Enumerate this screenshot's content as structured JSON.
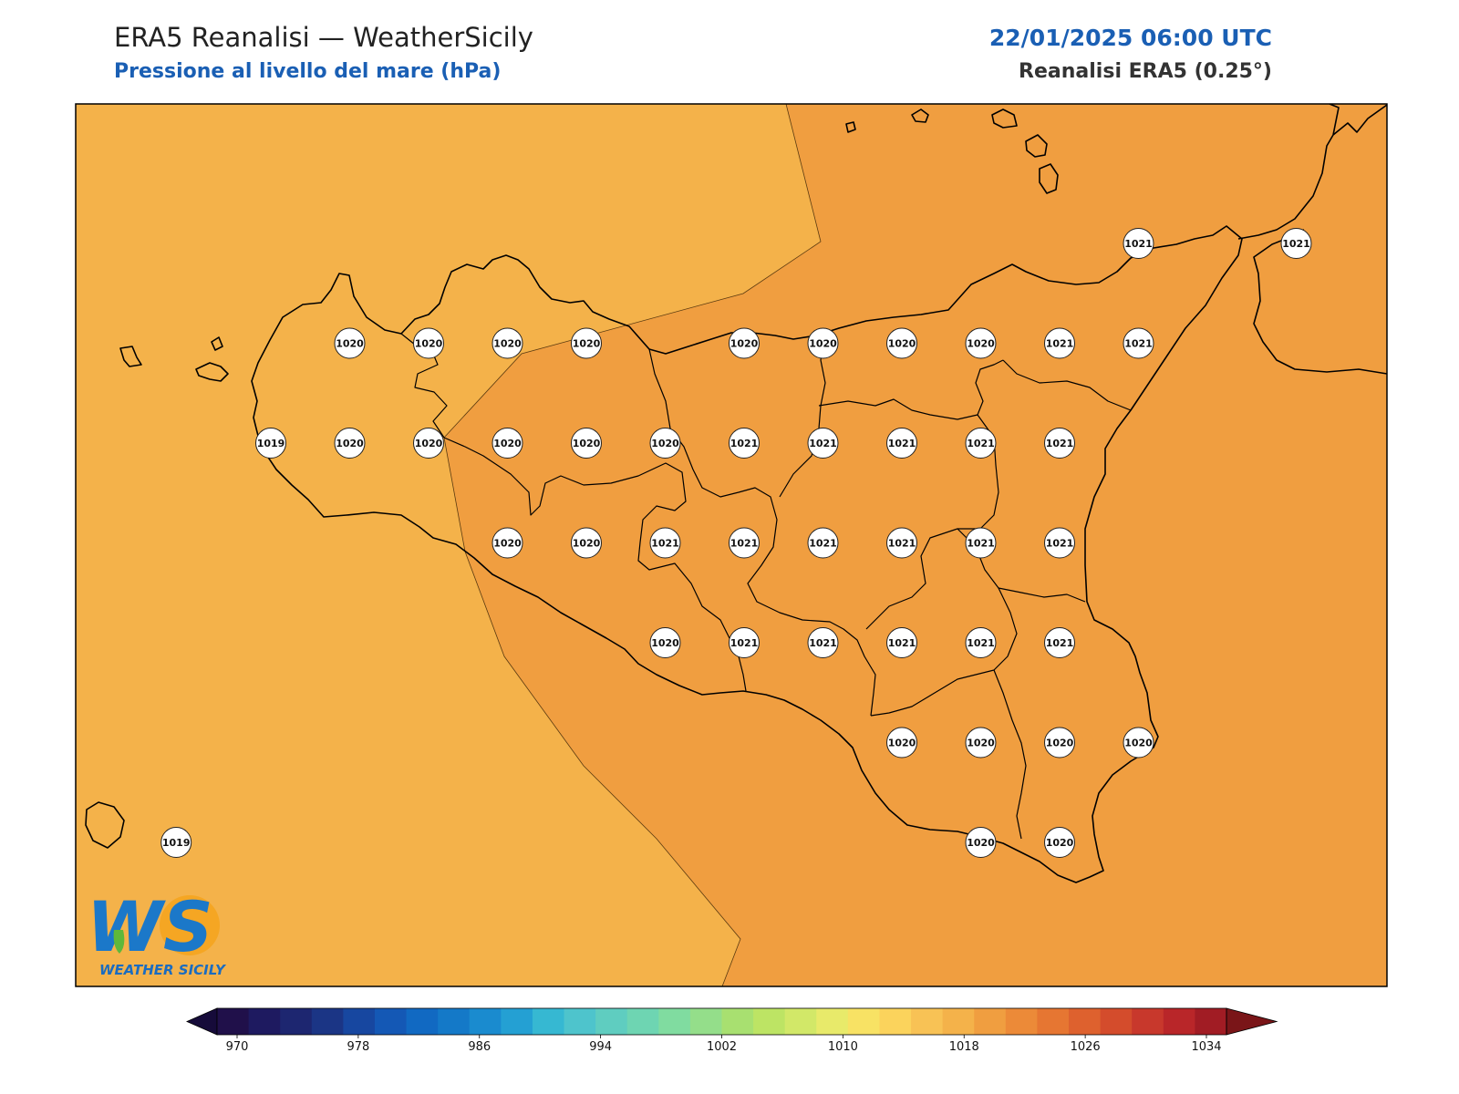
{
  "header": {
    "title": "ERA5 Reanalisi — WeatherSicily",
    "subtitle": "Pressione al livello del mare (hPa)",
    "datetime": "22/01/2025 06:00 UTC",
    "source": "Reanalisi ERA5 (0.25°)"
  },
  "logo": {
    "letters": "WS",
    "text": "WEATHER SICILY"
  },
  "colors": {
    "field_1019": "#f4b24a",
    "field_1020": "#f09e40",
    "coast": "#000000",
    "brand_blue": "#1a5fb4"
  },
  "stations": [
    {
      "value": "1021",
      "lon": 15.0,
      "lat": 38.25
    },
    {
      "value": "1021",
      "lon": 15.5,
      "lat": 38.25
    },
    {
      "value": "1020",
      "lon": 12.5,
      "lat": 38.0
    },
    {
      "value": "1020",
      "lon": 12.75,
      "lat": 38.0
    },
    {
      "value": "1020",
      "lon": 13.0,
      "lat": 38.0
    },
    {
      "value": "1020",
      "lon": 13.25,
      "lat": 38.0
    },
    {
      "value": "1020",
      "lon": 13.75,
      "lat": 38.0
    },
    {
      "value": "1020",
      "lon": 14.0,
      "lat": 38.0
    },
    {
      "value": "1020",
      "lon": 14.25,
      "lat": 38.0
    },
    {
      "value": "1020",
      "lon": 14.5,
      "lat": 38.0
    },
    {
      "value": "1021",
      "lon": 14.75,
      "lat": 38.0
    },
    {
      "value": "1021",
      "lon": 15.0,
      "lat": 38.0
    },
    {
      "value": "1019",
      "lon": 12.25,
      "lat": 37.75
    },
    {
      "value": "1020",
      "lon": 12.5,
      "lat": 37.75
    },
    {
      "value": "1020",
      "lon": 12.75,
      "lat": 37.75
    },
    {
      "value": "1020",
      "lon": 13.0,
      "lat": 37.75
    },
    {
      "value": "1020",
      "lon": 13.25,
      "lat": 37.75
    },
    {
      "value": "1020",
      "lon": 13.5,
      "lat": 37.75
    },
    {
      "value": "1021",
      "lon": 13.75,
      "lat": 37.75
    },
    {
      "value": "1021",
      "lon": 14.0,
      "lat": 37.75
    },
    {
      "value": "1021",
      "lon": 14.25,
      "lat": 37.75
    },
    {
      "value": "1021",
      "lon": 14.5,
      "lat": 37.75
    },
    {
      "value": "1021",
      "lon": 14.75,
      "lat": 37.75
    },
    {
      "value": "1020",
      "lon": 13.0,
      "lat": 37.5
    },
    {
      "value": "1020",
      "lon": 13.25,
      "lat": 37.5
    },
    {
      "value": "1021",
      "lon": 13.5,
      "lat": 37.5
    },
    {
      "value": "1021",
      "lon": 13.75,
      "lat": 37.5
    },
    {
      "value": "1021",
      "lon": 14.0,
      "lat": 37.5
    },
    {
      "value": "1021",
      "lon": 14.25,
      "lat": 37.5
    },
    {
      "value": "1021",
      "lon": 14.5,
      "lat": 37.5
    },
    {
      "value": "1021",
      "lon": 14.75,
      "lat": 37.5
    },
    {
      "value": "1020",
      "lon": 13.5,
      "lat": 37.25
    },
    {
      "value": "1021",
      "lon": 13.75,
      "lat": 37.25
    },
    {
      "value": "1021",
      "lon": 14.0,
      "lat": 37.25
    },
    {
      "value": "1021",
      "lon": 14.25,
      "lat": 37.25
    },
    {
      "value": "1021",
      "lon": 14.5,
      "lat": 37.25
    },
    {
      "value": "1021",
      "lon": 14.75,
      "lat": 37.25
    },
    {
      "value": "1020",
      "lon": 14.25,
      "lat": 37.0
    },
    {
      "value": "1020",
      "lon": 14.5,
      "lat": 37.0
    },
    {
      "value": "1020",
      "lon": 14.75,
      "lat": 37.0
    },
    {
      "value": "1020",
      "lon": 15.0,
      "lat": 37.0
    },
    {
      "value": "1019",
      "lon": 11.95,
      "lat": 36.75
    },
    {
      "value": "1020",
      "lon": 14.5,
      "lat": 36.75
    },
    {
      "value": "1020",
      "lon": 14.75,
      "lat": 36.75
    }
  ],
  "colorbar": {
    "min": 970,
    "max": 1034,
    "step": 2,
    "ticks": [
      "970",
      "978",
      "986",
      "994",
      "1002",
      "1010",
      "1018",
      "1026",
      "1034"
    ],
    "colors": [
      "#20104a",
      "#1e1a60",
      "#1d2670",
      "#1b3585",
      "#1747a0",
      "#1458b5",
      "#1169c2",
      "#1479c8",
      "#1a8bcf",
      "#24a0d3",
      "#36b8d2",
      "#4ec4cc",
      "#5fcdc0",
      "#6ed5b2",
      "#80dca0",
      "#94de8a",
      "#a8e070",
      "#bde464",
      "#d2e868",
      "#e8ea6a",
      "#f8e264",
      "#fbd35c",
      "#f8c255",
      "#f4b24a",
      "#f09e40",
      "#ec8a38",
      "#e67632",
      "#de612e",
      "#d44c2c",
      "#c8382c",
      "#b92629",
      "#a11c24"
    ],
    "under_color": "#160b3a",
    "over_color": "#7a1518"
  }
}
